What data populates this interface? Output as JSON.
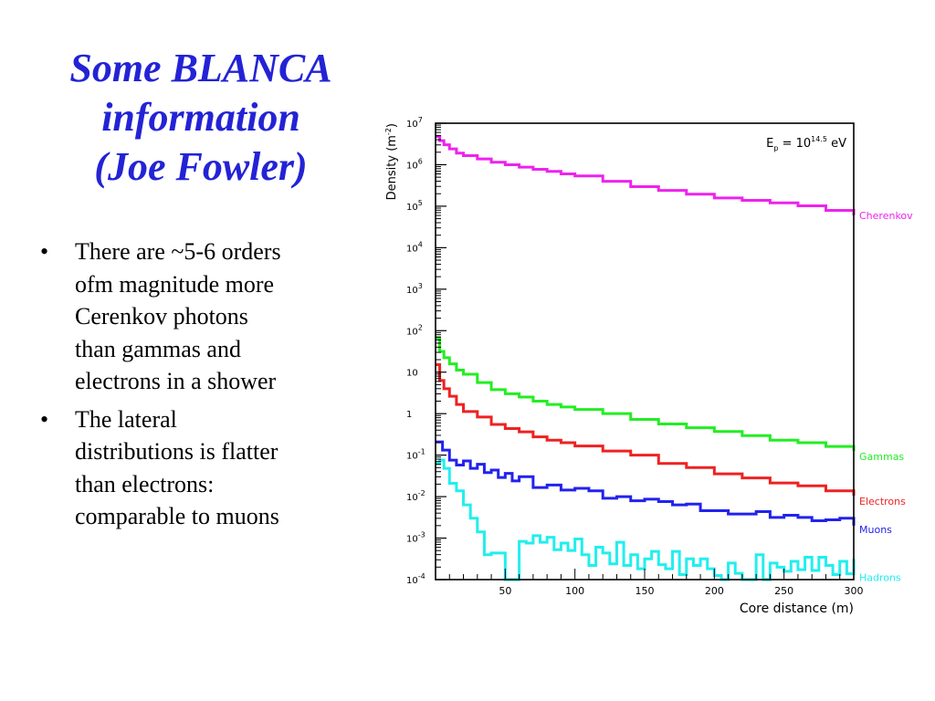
{
  "title_lines": [
    "Some BLANCA",
    "information",
    "(Joe Fowler)"
  ],
  "bullets": [
    [
      "There are ~5-6 orders",
      "ofm magnitude more",
      "Cerenkov photons",
      "than gammas and",
      "electrons in a shower"
    ],
    [
      "The lateral",
      "distributions is flatter",
      "than electrons:",
      "comparable to muons"
    ]
  ],
  "bullet_symbol": "•",
  "chart_data": {
    "type": "line",
    "step": true,
    "xlabel": "Core distance (m)",
    "ylabel": "Density (m^-2)",
    "annotation": "E_p = 10^14.5 eV",
    "xlim": [
      0,
      300
    ],
    "ylim_log10": [
      -4,
      7
    ],
    "yscale": "log",
    "grid": false,
    "legend_placement": "right of plot, at series end",
    "x_ticks": [
      50,
      100,
      150,
      200,
      250,
      300
    ],
    "y_ticks_exp": [
      7,
      6,
      5,
      4,
      3,
      2,
      1,
      0,
      -1,
      -2,
      -3,
      -4
    ],
    "y_tick_labels": [
      "10^7",
      "10^6",
      "10^5",
      "10^4",
      "10^3",
      "10^2",
      "10",
      "1",
      "10^-1",
      "10^-2",
      "10^-3",
      "10^-4"
    ],
    "series": [
      {
        "name": "Cherenkov",
        "color": "#ee22ee",
        "x": [
          0,
          3,
          6,
          10,
          15,
          20,
          30,
          40,
          50,
          60,
          70,
          80,
          90,
          100,
          120,
          140,
          160,
          180,
          200,
          220,
          240,
          260,
          280,
          300
        ],
        "log10_y": [
          6.68,
          6.58,
          6.48,
          6.38,
          6.28,
          6.22,
          6.14,
          6.06,
          6.0,
          5.94,
          5.89,
          5.84,
          5.78,
          5.73,
          5.6,
          5.47,
          5.38,
          5.29,
          5.2,
          5.14,
          5.08,
          5.01,
          4.9,
          4.78
        ]
      },
      {
        "name": "Gammas",
        "color": "#22ee22",
        "x": [
          0,
          3,
          6,
          10,
          15,
          20,
          30,
          40,
          50,
          60,
          70,
          80,
          90,
          100,
          120,
          140,
          160,
          180,
          200,
          220,
          240,
          260,
          280,
          300
        ],
        "log10_y": [
          1.83,
          1.5,
          1.35,
          1.2,
          1.05,
          0.95,
          0.75,
          0.58,
          0.48,
          0.4,
          0.3,
          0.22,
          0.16,
          0.1,
          0.0,
          -0.14,
          -0.25,
          -0.34,
          -0.43,
          -0.53,
          -0.64,
          -0.7,
          -0.79,
          -0.9
        ]
      },
      {
        "name": "Electrons",
        "color": "#ee2222",
        "x": [
          0,
          3,
          6,
          10,
          15,
          20,
          30,
          40,
          50,
          60,
          70,
          80,
          90,
          100,
          120,
          140,
          160,
          180,
          200,
          220,
          240,
          260,
          280,
          300
        ],
        "log10_y": [
          1.18,
          0.8,
          0.6,
          0.42,
          0.22,
          0.05,
          -0.08,
          -0.26,
          -0.36,
          -0.44,
          -0.56,
          -0.64,
          -0.7,
          -0.78,
          -0.9,
          -1.0,
          -1.2,
          -1.3,
          -1.45,
          -1.55,
          -1.67,
          -1.74,
          -1.86,
          -1.98
        ]
      },
      {
        "name": "Muons",
        "color": "#2222ee",
        "x": [
          0,
          5,
          10,
          15,
          20,
          25,
          30,
          35,
          40,
          45,
          50,
          55,
          60,
          70,
          80,
          90,
          100,
          110,
          120,
          130,
          140,
          150,
          160,
          170,
          180,
          190,
          200,
          210,
          220,
          230,
          240,
          250,
          260,
          270,
          280,
          290,
          300
        ],
        "log10_y": [
          -0.68,
          -0.88,
          -1.12,
          -1.24,
          -1.14,
          -1.32,
          -1.22,
          -1.42,
          -1.36,
          -1.54,
          -1.44,
          -1.62,
          -1.52,
          -1.78,
          -1.72,
          -1.84,
          -1.8,
          -1.86,
          -2.04,
          -2.0,
          -2.1,
          -2.06,
          -2.12,
          -2.2,
          -2.18,
          -2.34,
          -2.34,
          -2.42,
          -2.42,
          -2.36,
          -2.5,
          -2.45,
          -2.5,
          -2.58,
          -2.56,
          -2.52,
          -2.7
        ]
      },
      {
        "name": "Hadrons",
        "color": "#22eeee",
        "x": [
          0,
          3,
          6,
          10,
          15,
          20,
          25,
          30,
          35,
          40,
          45,
          50,
          55,
          60,
          65,
          70,
          75,
          80,
          85,
          90,
          95,
          100,
          105,
          110,
          115,
          120,
          125,
          130,
          135,
          140,
          145,
          150,
          155,
          160,
          165,
          170,
          175,
          180,
          185,
          190,
          195,
          200,
          205,
          210,
          215,
          220,
          225,
          230,
          235,
          240,
          245,
          250,
          255,
          260,
          265,
          270,
          275,
          280,
          285,
          290,
          295,
          300
        ],
        "log10_y": [
          -1.2,
          -1.12,
          -1.32,
          -1.68,
          -1.86,
          -2.2,
          -2.52,
          -2.85,
          -3.4,
          -3.36,
          -3.36,
          -4.2,
          -4.2,
          -3.08,
          -3.12,
          -2.94,
          -3.1,
          -2.98,
          -3.28,
          -3.12,
          -3.3,
          -3.02,
          -3.4,
          -3.66,
          -3.22,
          -3.36,
          -3.62,
          -3.1,
          -3.66,
          -3.4,
          -3.74,
          -3.5,
          -3.32,
          -3.64,
          -3.74,
          -3.32,
          -3.88,
          -3.5,
          -3.66,
          -3.5,
          -3.74,
          -3.9,
          -4.2,
          -3.6,
          -3.85,
          -4.2,
          -4.2,
          -3.4,
          -4.2,
          -3.6,
          -3.7,
          -3.8,
          -3.56,
          -3.76,
          -3.46,
          -3.78,
          -3.46,
          -3.66,
          -3.88,
          -3.56,
          -3.86,
          -3.5
        ]
      }
    ]
  }
}
